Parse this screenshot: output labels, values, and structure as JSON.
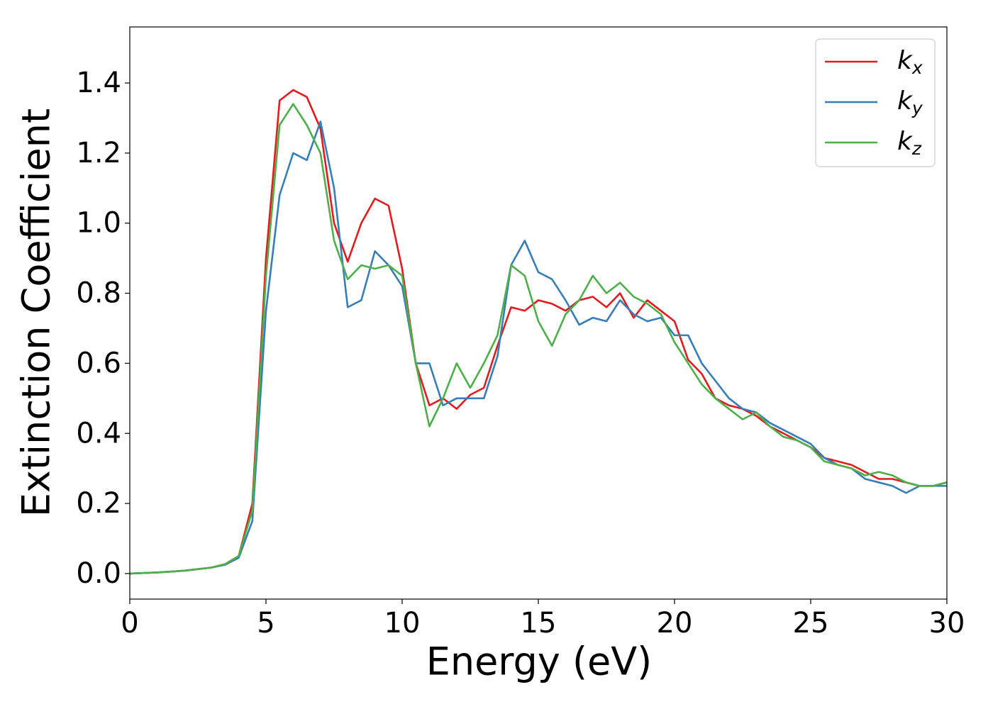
{
  "chart_data": {
    "type": "line",
    "xlabel": "Energy (eV)",
    "ylabel": "Extinction Coefficient",
    "x": [
      0,
      1,
      2,
      3,
      3.5,
      4,
      4.5,
      5,
      5.5,
      6,
      6.5,
      7,
      7.5,
      8,
      8.5,
      9,
      9.5,
      10,
      10.5,
      11,
      11.5,
      12,
      12.5,
      13,
      13.5,
      14,
      14.5,
      15,
      15.5,
      16,
      16.5,
      17,
      17.5,
      18,
      18.5,
      19,
      19.5,
      20,
      20.5,
      21,
      21.5,
      22,
      22.5,
      23,
      23.5,
      24,
      24.5,
      25,
      25.5,
      26,
      26.5,
      27,
      27.5,
      28,
      28.5,
      29,
      29.5,
      30
    ],
    "series": [
      {
        "name": "kx",
        "color": "#e41a1c",
        "values": [
          0,
          0.003,
          0.008,
          0.017,
          0.027,
          0.05,
          0.2,
          0.9,
          1.35,
          1.38,
          1.36,
          1.27,
          1.0,
          0.89,
          1.0,
          1.07,
          1.05,
          0.87,
          0.6,
          0.48,
          0.5,
          0.47,
          0.51,
          0.53,
          0.65,
          0.76,
          0.75,
          0.78,
          0.77,
          0.75,
          0.78,
          0.79,
          0.76,
          0.8,
          0.73,
          0.78,
          0.75,
          0.72,
          0.61,
          0.57,
          0.5,
          0.48,
          0.47,
          0.45,
          0.42,
          0.4,
          0.38,
          0.36,
          0.33,
          0.32,
          0.31,
          0.29,
          0.27,
          0.27,
          0.26,
          0.25,
          0.25,
          0.26
        ]
      },
      {
        "name": "ky",
        "color": "#377eb8",
        "values": [
          0,
          0.003,
          0.008,
          0.017,
          0.025,
          0.045,
          0.15,
          0.75,
          1.08,
          1.2,
          1.18,
          1.29,
          1.1,
          0.76,
          0.78,
          0.92,
          0.88,
          0.82,
          0.6,
          0.6,
          0.48,
          0.5,
          0.5,
          0.5,
          0.62,
          0.88,
          0.95,
          0.86,
          0.84,
          0.78,
          0.71,
          0.73,
          0.72,
          0.78,
          0.74,
          0.72,
          0.73,
          0.68,
          0.68,
          0.6,
          0.55,
          0.5,
          0.47,
          0.46,
          0.43,
          0.41,
          0.39,
          0.37,
          0.33,
          0.31,
          0.3,
          0.27,
          0.26,
          0.25,
          0.23,
          0.25,
          0.25,
          0.25
        ]
      },
      {
        "name": "kz",
        "color": "#4daf4a",
        "values": [
          0,
          0.003,
          0.008,
          0.017,
          0.027,
          0.05,
          0.18,
          0.85,
          1.28,
          1.34,
          1.28,
          1.2,
          0.95,
          0.84,
          0.88,
          0.87,
          0.88,
          0.85,
          0.6,
          0.42,
          0.5,
          0.6,
          0.53,
          0.6,
          0.68,
          0.88,
          0.85,
          0.72,
          0.65,
          0.74,
          0.78,
          0.85,
          0.8,
          0.83,
          0.79,
          0.77,
          0.74,
          0.66,
          0.6,
          0.54,
          0.5,
          0.47,
          0.44,
          0.46,
          0.42,
          0.39,
          0.38,
          0.36,
          0.32,
          0.31,
          0.3,
          0.28,
          0.29,
          0.28,
          0.26,
          0.25,
          0.25,
          0.26
        ]
      }
    ],
    "xlim": [
      0,
      30
    ],
    "xticks": [
      0,
      5,
      10,
      15,
      20,
      25,
      30
    ],
    "ylim": [
      -0.073,
      1.56
    ],
    "yticks": [
      {
        "value": 0,
        "label": "0.0"
      },
      0.2,
      0.4,
      0.6,
      0.8,
      {
        "value": 1,
        "label": "1.0"
      },
      1.2,
      1.4
    ],
    "legend": "upper right",
    "grid": false
  }
}
